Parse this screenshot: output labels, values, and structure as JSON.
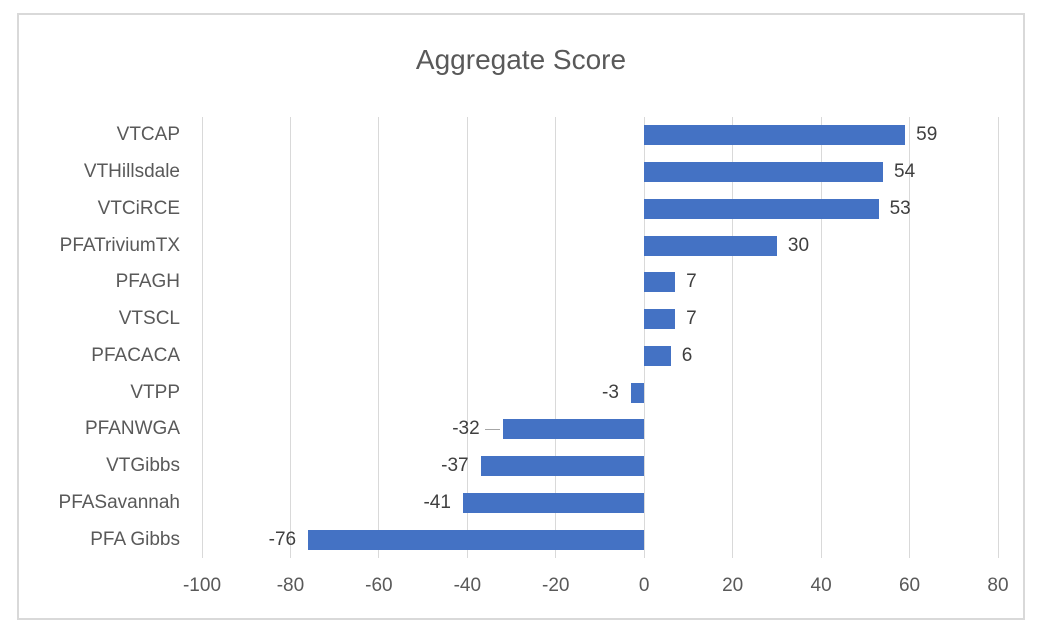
{
  "chart_data": {
    "type": "bar",
    "orientation": "horizontal",
    "title": "Aggregate Score",
    "categories": [
      "VTCAP",
      "VTHillsdale",
      "VTCiRCE",
      "PFATriviumTX",
      "PFAGH",
      "VTSCL",
      "PFACACA",
      "VTPP",
      "PFANWGA",
      "VTGibbs",
      "PFASavannah",
      "PFA Gibbs"
    ],
    "values": [
      59,
      54,
      53,
      30,
      7,
      7,
      6,
      -3,
      -32,
      -37,
      -41,
      -76
    ],
    "data_labels": [
      "59",
      "54",
      "53",
      "30",
      "7",
      "7",
      "6",
      "-3",
      "-32",
      "-37",
      "-41",
      "-76"
    ],
    "xlabel": "",
    "ylabel": "",
    "xlim": [
      -100,
      80
    ],
    "x_ticks": [
      -100,
      -80,
      -60,
      -40,
      -20,
      0,
      20,
      40,
      60,
      80
    ],
    "grid": true,
    "legend": "none",
    "label_with_leader_line": "PFANWGA",
    "colors": {
      "bar": "#4472C4",
      "gridline": "#D9D9D9",
      "chart_border": "#D9D9D9",
      "title_text": "#595959",
      "axis_text": "#595959",
      "data_label_text": "#3F3F3F",
      "leader_line": "#A6A6A6",
      "background": "#FFFFFF"
    }
  }
}
